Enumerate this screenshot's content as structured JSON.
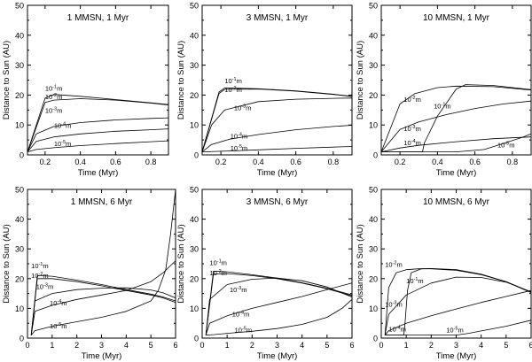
{
  "chart_data": [
    {
      "type": "line",
      "title": "1 MMSN, 1 Myr",
      "xlabel": "Time (Myr)",
      "ylabel": "Distance to Sun (AU)",
      "xlim": [
        0.1,
        0.9
      ],
      "ylim": [
        0,
        50
      ],
      "xticks": [
        0.2,
        0.4,
        0.6,
        0.8
      ],
      "xtick_labels": [
        "0.2",
        "0.4",
        "0.6",
        "0.8"
      ],
      "yticks": [
        0,
        10,
        20,
        30,
        40,
        50
      ],
      "ytick_labels": [
        "0",
        "10",
        "20",
        "30",
        "40",
        "50"
      ],
      "series": [
        {
          "name": "10^-1 m",
          "x": [
            0.1,
            0.2,
            0.25,
            0.4,
            0.6,
            0.8,
            0.9
          ],
          "y": [
            1,
            19,
            20.2,
            19.6,
            18.5,
            17.4,
            16.8
          ]
        },
        {
          "name": "10^-2 m",
          "x": [
            0.1,
            0.2,
            0.25,
            0.4,
            0.6,
            0.8,
            0.9
          ],
          "y": [
            1,
            17.5,
            18.3,
            18.8,
            18.3,
            17.3,
            16.7
          ]
        },
        {
          "name": "10^-3 m",
          "x": [
            0.1,
            0.15,
            0.25,
            0.4,
            0.6,
            0.8,
            0.9
          ],
          "y": [
            1,
            7,
            9.5,
            10.8,
            11.7,
            12.2,
            12.4
          ]
        },
        {
          "name": "10^-4 m",
          "x": [
            0.1,
            0.15,
            0.25,
            0.4,
            0.6,
            0.8,
            0.9
          ],
          "y": [
            1,
            4.5,
            6,
            7,
            7.9,
            8.4,
            8.7
          ]
        },
        {
          "name": "10^-5 m",
          "x": [
            0.1,
            0.15,
            0.25,
            0.4,
            0.6,
            0.8,
            0.9
          ],
          "y": [
            1,
            1.8,
            2.4,
            3.1,
            3.8,
            4.4,
            4.7
          ]
        }
      ],
      "annotations": [
        {
          "base": "10",
          "exp": "-1",
          "unit": "m",
          "x": 0.2,
          "y": 21.5
        },
        {
          "base": "10",
          "exp": "-2",
          "unit": "m",
          "x": 0.2,
          "y": 18.6
        },
        {
          "base": "10",
          "exp": "-3",
          "unit": "m",
          "x": 0.2,
          "y": 14.0
        },
        {
          "base": "10",
          "exp": "-4",
          "unit": "m",
          "x": 0.25,
          "y": 9.0
        },
        {
          "base": "10",
          "exp": "-5",
          "unit": "m",
          "x": 0.25,
          "y": 3.0
        }
      ]
    },
    {
      "type": "line",
      "title": "3 MMSN, 1 Myr",
      "xlabel": "Time (Myr)",
      "ylabel": "Distance to Sun (AU)",
      "xlim": [
        0.1,
        0.9
      ],
      "ylim": [
        0,
        50
      ],
      "xticks": [
        0.2,
        0.4,
        0.6,
        0.8
      ],
      "xtick_labels": [
        "0.2",
        "0.4",
        "0.6",
        "0.8"
      ],
      "yticks": [
        0,
        10,
        20,
        30,
        40,
        50
      ],
      "ytick_labels": [
        "0",
        "10",
        "20",
        "30",
        "40",
        "50"
      ],
      "series": [
        {
          "name": "10^-1 m",
          "x": [
            0.1,
            0.19,
            0.22,
            0.4,
            0.6,
            0.8,
            0.9
          ],
          "y": [
            1,
            21,
            22.4,
            22.1,
            21.4,
            20.3,
            19.6
          ]
        },
        {
          "name": "10^-2 m",
          "x": [
            0.1,
            0.19,
            0.22,
            0.4,
            0.6,
            0.8,
            0.9
          ],
          "y": [
            1,
            20.5,
            21.9,
            22,
            21.3,
            20.2,
            19.5
          ]
        },
        {
          "name": "10^-3 m",
          "x": [
            0.1,
            0.15,
            0.22,
            0.4,
            0.6,
            0.8,
            0.9
          ],
          "y": [
            1,
            10,
            15,
            17.8,
            18.6,
            18.9,
            19
          ]
        },
        {
          "name": "10^-4 m",
          "x": [
            0.1,
            0.15,
            0.25,
            0.4,
            0.6,
            0.8,
            0.9
          ],
          "y": [
            1,
            3.5,
            5.3,
            6.8,
            8.4,
            9.5,
            9.9
          ]
        },
        {
          "name": "10^-5 m",
          "x": [
            0.1,
            0.2,
            0.4,
            0.6,
            0.8,
            0.9
          ],
          "y": [
            1,
            1.2,
            1.7,
            2.2,
            2.6,
            2.8
          ]
        }
      ],
      "annotations": [
        {
          "base": "10",
          "exp": "-1",
          "unit": "m",
          "x": 0.22,
          "y": 24.0
        },
        {
          "base": "10",
          "exp": "-2",
          "unit": "m",
          "x": 0.22,
          "y": 21.0
        },
        {
          "base": "10",
          "exp": "-3",
          "unit": "m",
          "x": 0.27,
          "y": 15.0
        },
        {
          "base": "10",
          "exp": "-4",
          "unit": "m",
          "x": 0.25,
          "y": 5.5
        },
        {
          "base": "10",
          "exp": "-5",
          "unit": "m",
          "x": 0.25,
          "y": 1.5
        }
      ]
    },
    {
      "type": "line",
      "title": "10 MMSN, 1 Myr",
      "xlabel": "Time (Myr)",
      "ylabel": "Distance to Sun (AU)",
      "xlim": [
        0.1,
        0.9
      ],
      "ylim": [
        0,
        50
      ],
      "xticks": [
        0.2,
        0.4,
        0.6,
        0.8
      ],
      "xtick_labels": [
        "0.2",
        "0.4",
        "0.6",
        "0.8"
      ],
      "yticks": [
        0,
        10,
        20,
        30,
        40,
        50
      ],
      "ytick_labels": [
        "0",
        "10",
        "20",
        "30",
        "40",
        "50"
      ],
      "series": [
        {
          "name": "10^-1 m",
          "x": [
            0.1,
            0.32,
            0.33,
            0.4,
            0.5,
            0.55,
            0.7,
            0.9
          ],
          "y": [
            1,
            1,
            4,
            13,
            22,
            23.5,
            23.2,
            21.8
          ]
        },
        {
          "name": "10^-2 m",
          "x": [
            0.1,
            0.2,
            0.28,
            0.4,
            0.5,
            0.7,
            0.9
          ],
          "y": [
            1,
            17,
            20.5,
            22.5,
            23,
            22.8,
            21.7
          ]
        },
        {
          "name": "10^-3 m",
          "x": [
            0.1,
            0.2,
            0.3,
            0.45,
            0.6,
            0.75,
            0.9
          ],
          "y": [
            1,
            8.5,
            11,
            13.5,
            15.5,
            17,
            18
          ]
        },
        {
          "name": "10^-4 m",
          "x": [
            0.1,
            0.2,
            0.3,
            0.5,
            0.7,
            0.9
          ],
          "y": [
            1,
            2.3,
            3.2,
            4.4,
            5.4,
            6
          ]
        },
        {
          "name": "10^-5 m",
          "x": [
            0.1,
            0.5,
            0.65,
            0.75,
            0.85,
            0.9
          ],
          "y": [
            1,
            1,
            1.8,
            3.8,
            5.8,
            7
          ]
        }
      ],
      "annotations": [
        {
          "base": "10",
          "exp": "-2",
          "unit": "m",
          "x": 0.22,
          "y": 17.8
        },
        {
          "base": "10",
          "exp": "-1",
          "unit": "m",
          "x": 0.38,
          "y": 15.5
        },
        {
          "base": "10",
          "exp": "-3",
          "unit": "m",
          "x": 0.22,
          "y": 8.0
        },
        {
          "base": "10",
          "exp": "-4",
          "unit": "m",
          "x": 0.22,
          "y": 3.2
        },
        {
          "base": "10",
          "exp": "-5",
          "unit": "m",
          "x": 0.72,
          "y": 2.5
        }
      ]
    },
    {
      "type": "line",
      "title": "1 MMSN, 6 Myr",
      "xlabel": "Time (Myr)",
      "ylabel": "Distance to Sun (AU)",
      "xlim": [
        0,
        6
      ],
      "ylim": [
        0,
        50
      ],
      "xticks": [
        0,
        1,
        2,
        3,
        4,
        5,
        6
      ],
      "xtick_labels": [
        "0",
        "1",
        "2",
        "3",
        "4",
        "5",
        "6"
      ],
      "yticks": [
        0,
        10,
        20,
        30,
        40,
        50
      ],
      "ytick_labels": [
        "0",
        "10",
        "20",
        "30",
        "40",
        "50"
      ],
      "series": [
        {
          "name": "10^-1 m",
          "x": [
            0.15,
            0.4,
            1,
            2,
            3,
            4,
            5,
            5.5,
            6
          ],
          "y": [
            1,
            21,
            20.8,
            19.5,
            18,
            16.3,
            14.8,
            13.8,
            12.5
          ]
        },
        {
          "name": "10^-2 m",
          "x": [
            0.15,
            0.4,
            1,
            2,
            3,
            4,
            5,
            5.5,
            6
          ],
          "y": [
            1,
            20,
            20,
            19,
            17.6,
            16,
            14.5,
            13.5,
            12
          ]
        },
        {
          "name": "10^-3 m",
          "x": [
            0.15,
            0.3,
            1,
            2,
            3,
            4,
            5,
            5.5,
            6
          ],
          "y": [
            1,
            12.5,
            15,
            16.3,
            16.8,
            16.9,
            16.2,
            15.2,
            13.5
          ]
        },
        {
          "name": "10^-4 m",
          "x": [
            0.15,
            0.3,
            1,
            2,
            3,
            4,
            5,
            5.5,
            6
          ],
          "y": [
            1,
            9,
            11,
            13,
            14.5,
            16,
            19,
            22,
            26
          ]
        },
        {
          "name": "10^-5 m",
          "x": [
            0.15,
            0.3,
            1,
            2,
            3,
            4,
            5,
            5.3,
            5.6,
            5.8,
            6
          ],
          "y": [
            1,
            2.5,
            4,
            5.5,
            7,
            9,
            12.5,
            16,
            23,
            35,
            50
          ]
        }
      ],
      "annotations": [
        {
          "base": "10",
          "exp": "-1",
          "unit": "m",
          "x": 0.15,
          "y": 23.5
        },
        {
          "base": "10",
          "exp": "-2",
          "unit": "m",
          "x": 0.15,
          "y": 20.2
        },
        {
          "base": "10",
          "exp": "-3",
          "unit": "m",
          "x": 0.35,
          "y": 16.5
        },
        {
          "base": "10",
          "exp": "-4",
          "unit": "m",
          "x": 0.9,
          "y": 11.0
        },
        {
          "base": "10",
          "exp": "-5",
          "unit": "m",
          "x": 0.9,
          "y": 3.2
        }
      ]
    },
    {
      "type": "line",
      "title": "3 MMSN, 6 Myr",
      "xlabel": "Time (Myr)",
      "ylabel": "Distance to Sun (AU)",
      "xlim": [
        0,
        6
      ],
      "ylim": [
        0,
        50
      ],
      "xticks": [
        0,
        1,
        2,
        3,
        4,
        5,
        6
      ],
      "xtick_labels": [
        "0",
        "1",
        "2",
        "3",
        "4",
        "5",
        "6"
      ],
      "yticks": [
        0,
        10,
        20,
        30,
        40,
        50
      ],
      "ytick_labels": [
        "0",
        "10",
        "20",
        "30",
        "40",
        "50"
      ],
      "series": [
        {
          "name": "10^-1 m",
          "x": [
            0.15,
            0.45,
            1,
            2,
            3,
            4,
            5,
            6
          ],
          "y": [
            1,
            22.5,
            22.3,
            21.3,
            20.2,
            18.6,
            16.8,
            14.5
          ]
        },
        {
          "name": "10^-2 m",
          "x": [
            0.15,
            0.45,
            1,
            2,
            3,
            4,
            5,
            6
          ],
          "y": [
            1,
            21.5,
            21.7,
            21,
            20,
            18.5,
            16.6,
            14.2
          ]
        },
        {
          "name": "10^-3 m",
          "x": [
            0.15,
            0.3,
            1,
            2,
            3,
            4,
            5,
            6
          ],
          "y": [
            1,
            13,
            18,
            19.8,
            20.2,
            19.3,
            17.2,
            13.8
          ]
        },
        {
          "name": "10^-4 m",
          "x": [
            0.15,
            0.3,
            1,
            2,
            3,
            4,
            5,
            6
          ],
          "y": [
            1,
            5,
            7.5,
            10,
            12,
            14,
            16.3,
            18.5
          ]
        },
        {
          "name": "10^-5 m",
          "x": [
            0.15,
            0.5,
            1,
            2,
            3,
            4,
            5,
            5.6,
            6
          ],
          "y": [
            1,
            1.2,
            1.6,
            2.3,
            3.2,
            4.6,
            7,
            10,
            13
          ]
        }
      ],
      "annotations": [
        {
          "base": "10",
          "exp": "-1",
          "unit": "m",
          "x": 0.3,
          "y": 24.5
        },
        {
          "base": "10",
          "exp": "-2",
          "unit": "m",
          "x": 0.3,
          "y": 21.2
        },
        {
          "base": "10",
          "exp": "-3",
          "unit": "m",
          "x": 1.1,
          "y": 15.5
        },
        {
          "base": "10",
          "exp": "-4",
          "unit": "m",
          "x": 1.2,
          "y": 7.3
        },
        {
          "base": "10",
          "exp": "-5",
          "unit": "m",
          "x": 1.3,
          "y": 2.0
        }
      ]
    },
    {
      "type": "line",
      "title": "10 MMSN, 6 Myr",
      "xlabel": "Time (Myr)",
      "ylabel": "Distance to Sun (AU)",
      "xlim": [
        0,
        6
      ],
      "ylim": [
        0,
        50
      ],
      "xticks": [
        0,
        1,
        2,
        3,
        4,
        5,
        6
      ],
      "xtick_labels": [
        "0",
        "1",
        "2",
        "3",
        "4",
        "5",
        "6"
      ],
      "yticks": [
        0,
        10,
        20,
        30,
        40,
        50
      ],
      "ytick_labels": [
        "0",
        "10",
        "20",
        "30",
        "40",
        "50"
      ],
      "series": [
        {
          "name": "10^-1 m",
          "x": [
            0.15,
            0.9,
            0.95,
            1.05,
            1.2,
            1.6,
            2,
            3,
            4,
            5,
            6
          ],
          "y": [
            1,
            1,
            5,
            16,
            22,
            23.3,
            23.4,
            23,
            21.5,
            19,
            15.5
          ]
        },
        {
          "name": "10^-2 m",
          "x": [
            0.15,
            0.3,
            0.6,
            1,
            1.5,
            2,
            3,
            4,
            5,
            6
          ],
          "y": [
            1,
            17,
            22,
            23,
            23.3,
            23.3,
            22.8,
            21.3,
            19,
            15.3
          ]
        },
        {
          "name": "10^-3 m",
          "x": [
            0.15,
            0.3,
            1,
            2,
            3,
            4,
            5,
            6
          ],
          "y": [
            1,
            8,
            14.5,
            18.5,
            20.5,
            20.4,
            18.8,
            15.5
          ]
        },
        {
          "name": "10^-4 m",
          "x": [
            0.15,
            0.3,
            1,
            2,
            3,
            4,
            5,
            6
          ],
          "y": [
            1,
            2.5,
            5,
            7.5,
            9.8,
            12,
            14,
            16
          ]
        },
        {
          "name": "10^-5 m",
          "x": [
            0.15,
            3,
            3.5,
            4,
            5,
            6
          ],
          "y": [
            1,
            1,
            1.6,
            2.4,
            4,
            6
          ]
        }
      ],
      "annotations": [
        {
          "base": "10",
          "exp": "-2",
          "unit": "m",
          "x": 0.15,
          "y": 24.0
        },
        {
          "base": "10",
          "exp": "-1",
          "unit": "m",
          "x": 1.0,
          "y": 18.5
        },
        {
          "base": "10",
          "exp": "-3",
          "unit": "m",
          "x": 0.15,
          "y": 10.5
        },
        {
          "base": "10",
          "exp": "-4",
          "unit": "m",
          "x": 0.3,
          "y": 2.2
        },
        {
          "base": "10",
          "exp": "-5",
          "unit": "m",
          "x": 2.6,
          "y": 2.0
        }
      ]
    }
  ]
}
